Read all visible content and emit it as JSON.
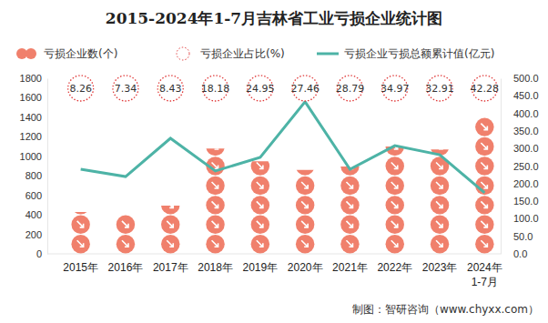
{
  "chart_data": {
    "type": "bar",
    "title": "2015-2024年1-7月吉林省工业亏损企业统计图",
    "categories": [
      "2015年",
      "2016年",
      "2017年",
      "2018年",
      "2019年",
      "2020年",
      "2021年",
      "2022年",
      "2023年",
      "2024年\n1-7月"
    ],
    "series": [
      {
        "name": "亏损企业数(个)",
        "type": "bar",
        "color": "#f0806c",
        "values": [
          430,
          400,
          495,
          1080,
          950,
          860,
          895,
          1100,
          1070,
          1400
        ]
      },
      {
        "name": "亏损企业占比(%)",
        "type": "label",
        "color": "#e03a3a",
        "data_labels": true,
        "values": [
          8.26,
          7.34,
          8.43,
          18.18,
          24.95,
          27.46,
          28.79,
          34.97,
          32.91,
          42.28
        ]
      },
      {
        "name": "亏损企业亏损总额累计值(亿元)",
        "type": "line",
        "color": "#4db3a6",
        "axis": "y2",
        "values": [
          241,
          220,
          329,
          236,
          275,
          433,
          241,
          308,
          282,
          174
        ]
      }
    ],
    "ylim": [
      0,
      1800
    ],
    "yticks": [
      0,
      200,
      400,
      600,
      800,
      1000,
      1200,
      1400,
      1600,
      1800
    ],
    "y2lim": [
      0,
      500
    ],
    "y2ticks": [
      {
        "value": 0,
        "label": "0.0"
      },
      {
        "value": 50,
        "label": "50.0"
      },
      {
        "value": 100,
        "label": "100.0"
      },
      {
        "value": 150,
        "label": "150.0"
      },
      {
        "value": 200,
        "label": "200.0"
      },
      {
        "value": 250,
        "label": "250.0"
      },
      {
        "value": 300,
        "label": "300.0"
      },
      {
        "value": 350,
        "label": "350.0"
      },
      {
        "value": 400,
        "label": "400.0"
      },
      {
        "value": 450,
        "label": "450.0"
      },
      {
        "value": 500,
        "label": "500.0"
      }
    ],
    "legend": "top",
    "source": "制图：智研咨询（www.chyxx.com）"
  }
}
